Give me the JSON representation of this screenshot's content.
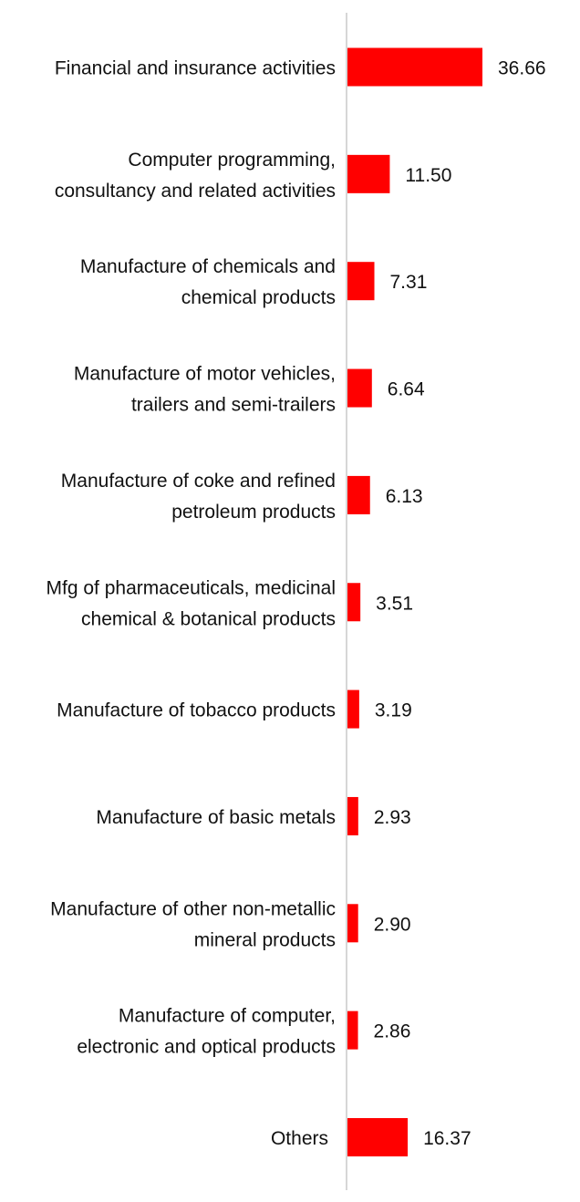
{
  "chart_data": {
    "type": "bar",
    "orientation": "horizontal",
    "bar_color": "#ff0000",
    "axis_color": "#c8c8c8",
    "grid": false,
    "categories": [
      "Financial and insurance activities",
      "Computer programming, consultancy and related activities",
      "Manufacture of chemicals and chemical products",
      "Manufacture of motor vehicles, trailers and semi-trailers",
      "Manufacture of coke and refined petroleum products",
      "Mfg of pharmaceuticals, medicinal chemical & botanical products",
      "Manufacture of tobacco products",
      "Manufacture of basic metals",
      "Manufacture of other non-metallic mineral products",
      "Manufacture of computer, electronic and optical products",
      "Others"
    ],
    "category_lines": [
      [
        "Financial and insurance activities"
      ],
      [
        "Computer programming,",
        "consultancy and related activities"
      ],
      [
        "Manufacture of chemicals and",
        "chemical products"
      ],
      [
        "Manufacture of motor vehicles,",
        "trailers and semi-trailers"
      ],
      [
        "Manufacture of coke and refined",
        "petroleum products"
      ],
      [
        "Mfg of pharmaceuticals, medicinal",
        "chemical & botanical products"
      ],
      [
        "Manufacture of tobacco products"
      ],
      [
        "Manufacture of basic metals"
      ],
      [
        "Manufacture of other non-metallic",
        "mineral products"
      ],
      [
        "Manufacture of computer,",
        "electronic and optical products"
      ],
      [
        "Others"
      ]
    ],
    "values": [
      36.66,
      11.5,
      7.31,
      6.64,
      6.13,
      3.51,
      3.19,
      2.93,
      2.9,
      2.86,
      16.37
    ],
    "value_labels": [
      "36.66",
      "11.50",
      "7.31",
      "6.64",
      "6.13",
      "3.51",
      "3.19",
      "2.93",
      "2.90",
      "2.86",
      "16.37"
    ],
    "xlim": [
      0,
      36.66
    ]
  }
}
